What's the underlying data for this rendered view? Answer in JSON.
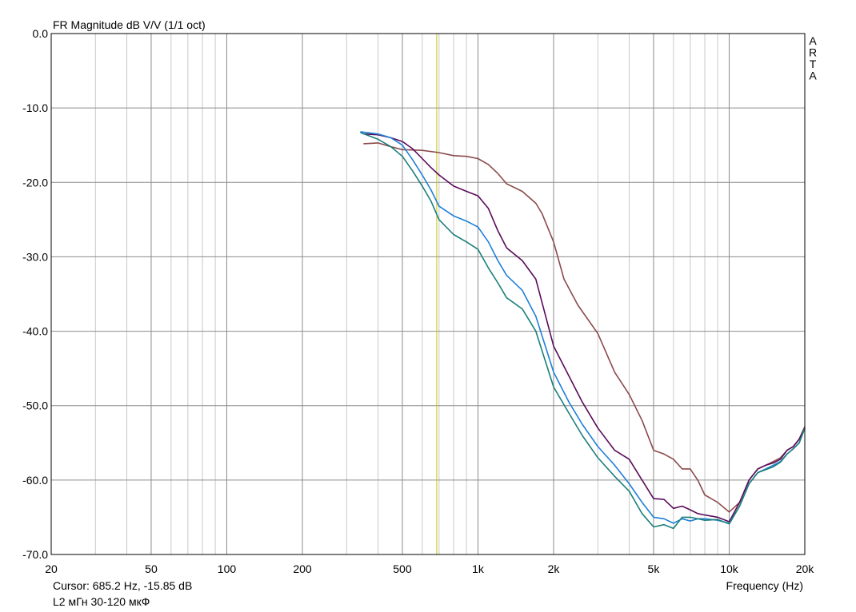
{
  "chart_data": {
    "type": "line",
    "title": "FR Magnitude dB V/V (1/1 oct)",
    "xlabel": "Frequency (Hz)",
    "ylabel": "",
    "x_scale": "log",
    "xlim": [
      20,
      20000
    ],
    "ylim": [
      -70,
      0
    ],
    "grid": true,
    "x_major_ticks": [
      20,
      50,
      100,
      200,
      500,
      1000,
      2000,
      5000,
      10000,
      20000
    ],
    "x_tick_labels": [
      "20",
      "50",
      "100",
      "200",
      "500",
      "1k",
      "2k",
      "5k",
      "10k",
      "20k"
    ],
    "y_ticks": [
      0,
      -10,
      -20,
      -30,
      -40,
      -50,
      -60,
      -70
    ],
    "y_tick_labels": [
      "0.0",
      "-10.0",
      "-20.0",
      "-30.0",
      "-40.0",
      "-50.0",
      "-60.0",
      "-70.0"
    ],
    "cursor": {
      "x": 685.2,
      "color": "#c8c400"
    },
    "cursor_readout": "Cursor: 685.2 Hz, -15.85 dB",
    "caption": "L2 мГн 30-120 мкФ",
    "watermark": "ARTA",
    "series": [
      {
        "color": "#8b4a4a",
        "x": [
          350,
          400,
          450,
          500,
          600,
          700,
          800,
          900,
          1000,
          1100,
          1200,
          1300,
          1500,
          1700,
          1800,
          2000,
          2200,
          2500,
          3000,
          3500,
          4000,
          4500,
          5000,
          5500,
          6000,
          6500,
          7000,
          7500,
          8000,
          9000,
          10000,
          11000,
          12000,
          13000,
          14000,
          15000,
          16000,
          17000,
          18000,
          19000,
          20000
        ],
        "y": [
          -14.8,
          -14.7,
          -15.2,
          -15.6,
          -15.7,
          -16.0,
          -16.4,
          -16.5,
          -16.8,
          -17.6,
          -18.8,
          -20.2,
          -21.2,
          -22.8,
          -24.2,
          -28.0,
          -33.0,
          -36.5,
          -40.3,
          -45.5,
          -48.5,
          -52.0,
          -56.0,
          -56.5,
          -57.2,
          -58.5,
          -58.5,
          -60.0,
          -62.0,
          -63.0,
          -64.3,
          -63.0,
          -60.0,
          -58.5,
          -58.0,
          -57.5,
          -57.0,
          -56.0,
          -55.5,
          -54.5,
          -52.8
        ]
      },
      {
        "color": "#5a0a5a",
        "x": [
          350,
          400,
          450,
          500,
          550,
          600,
          650,
          700,
          800,
          900,
          1000,
          1100,
          1200,
          1300,
          1500,
          1700,
          2000,
          2300,
          2600,
          3000,
          3500,
          4000,
          4500,
          5000,
          5500,
          6000,
          6500,
          7000,
          7500,
          8000,
          9000,
          10000,
          11000,
          12000,
          13000,
          14000,
          15000,
          16000,
          17000,
          18000,
          19000,
          20000
        ],
        "y": [
          -13.5,
          -13.6,
          -14.0,
          -14.5,
          -15.5,
          -16.8,
          -18.0,
          -19.0,
          -20.5,
          -21.2,
          -21.8,
          -23.5,
          -26.5,
          -28.8,
          -30.5,
          -33.0,
          -42.0,
          -46.0,
          -49.5,
          -53.0,
          -56.0,
          -57.2,
          -60.0,
          -62.5,
          -62.6,
          -63.8,
          -63.5,
          -64.0,
          -64.5,
          -64.7,
          -65.0,
          -65.6,
          -63.0,
          -60.0,
          -58.5,
          -58.0,
          -57.7,
          -57.2,
          -56.0,
          -55.5,
          -54.5,
          -53.0
        ]
      },
      {
        "color": "#1e7fd8",
        "x": [
          340,
          400,
          450,
          500,
          550,
          600,
          650,
          700,
          800,
          900,
          1000,
          1100,
          1200,
          1300,
          1500,
          1700,
          2000,
          2300,
          2600,
          3000,
          3500,
          4000,
          4500,
          5000,
          5500,
          6000,
          6500,
          7000,
          7500,
          8000,
          9000,
          10000,
          11000,
          12000,
          13000,
          14000,
          15000,
          16000,
          17000,
          18000,
          19000,
          20000
        ],
        "y": [
          -13.2,
          -13.5,
          -14.0,
          -15.0,
          -17.0,
          -19.0,
          -21.0,
          -23.2,
          -24.5,
          -25.2,
          -26.0,
          -28.0,
          -30.5,
          -32.5,
          -34.5,
          -38.0,
          -45.5,
          -49.5,
          -52.5,
          -55.5,
          -58.0,
          -60.5,
          -63.0,
          -65.0,
          -65.2,
          -65.8,
          -65.2,
          -65.5,
          -65.2,
          -65.2,
          -65.4,
          -65.8,
          -63.5,
          -60.5,
          -59.0,
          -58.5,
          -58.0,
          -57.5,
          -56.5,
          -55.8,
          -55.0,
          -53.0
        ]
      },
      {
        "color": "#1a7f7a",
        "x": [
          340,
          400,
          450,
          500,
          550,
          600,
          650,
          700,
          800,
          900,
          1000,
          1100,
          1200,
          1300,
          1500,
          1700,
          2000,
          2300,
          2600,
          3000,
          3500,
          4000,
          4500,
          5000,
          5500,
          6000,
          6500,
          7000,
          7500,
          8000,
          9000,
          10000,
          11000,
          12000,
          13000,
          14000,
          15000,
          16000,
          17000,
          18000,
          19000,
          20000
        ],
        "y": [
          -13.3,
          -14.2,
          -15.2,
          -16.5,
          -18.5,
          -20.5,
          -22.5,
          -25.0,
          -27.0,
          -28.0,
          -29.0,
          -31.5,
          -33.5,
          -35.5,
          -37.0,
          -40.0,
          -47.5,
          -51.0,
          -54.0,
          -57.0,
          -59.5,
          -61.5,
          -64.5,
          -66.3,
          -66.0,
          -66.5,
          -65.0,
          -65.0,
          -65.2,
          -65.4,
          -65.3,
          -65.9,
          -63.5,
          -60.5,
          -59.0,
          -58.6,
          -58.2,
          -57.6,
          -56.5,
          -55.8,
          -55.0,
          -53.0
        ]
      }
    ]
  }
}
